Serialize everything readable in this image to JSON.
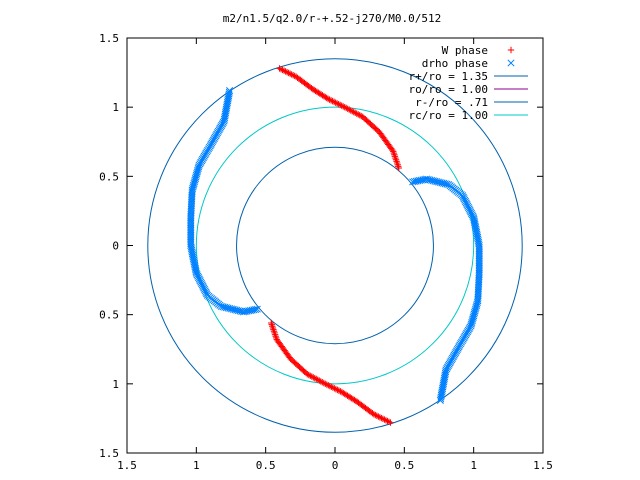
{
  "chart_data": {
    "type": "scatter",
    "title": "m2/n1.5/q2.0/r-+.52-j270/M0.0/512",
    "xlabel": "",
    "ylabel": "",
    "xlim": [
      -1.5,
      1.5
    ],
    "ylim": [
      -1.5,
      1.5
    ],
    "x_ticks": [
      {
        "value": -1.5,
        "label": "1.5"
      },
      {
        "value": -1,
        "label": "1"
      },
      {
        "value": -0.5,
        "label": "0.5"
      },
      {
        "value": 0,
        "label": "0"
      },
      {
        "value": 0.5,
        "label": "0.5"
      },
      {
        "value": 1,
        "label": "1"
      },
      {
        "value": 1.5,
        "label": "1.5"
      }
    ],
    "y_ticks": [
      {
        "value": 1.5,
        "label": "1.5"
      },
      {
        "value": 1,
        "label": "1"
      },
      {
        "value": 0.5,
        "label": "0.5"
      },
      {
        "value": 0,
        "label": "0"
      },
      {
        "value": -0.5,
        "label": "0.5"
      },
      {
        "value": -1,
        "label": "1"
      },
      {
        "value": -1.5,
        "label": "1.5"
      }
    ],
    "grid": false,
    "legend_position": "top-right",
    "series": [
      {
        "name": "W phase",
        "kind": "points",
        "marker": "+",
        "color": "#ff0000",
        "arms": [
          [
            [
              -0.4,
              1.28
            ],
            [
              -0.28,
              1.22
            ],
            [
              -0.16,
              1.13
            ],
            [
              -0.05,
              1.06
            ],
            [
              0.07,
              1.0
            ],
            [
              0.2,
              0.93
            ],
            [
              0.32,
              0.82
            ],
            [
              0.42,
              0.68
            ],
            [
              0.46,
              0.56
            ]
          ],
          [
            [
              0.4,
              -1.28
            ],
            [
              0.28,
              -1.22
            ],
            [
              0.16,
              -1.13
            ],
            [
              0.05,
              -1.06
            ],
            [
              -0.07,
              -1.0
            ],
            [
              -0.2,
              -0.93
            ],
            [
              -0.32,
              -0.82
            ],
            [
              -0.42,
              -0.68
            ],
            [
              -0.46,
              -0.56
            ]
          ]
        ]
      },
      {
        "name": "drho phase",
        "kind": "points",
        "marker": "x",
        "color": "#0080ff",
        "arms": [
          [
            [
              -0.76,
              1.12
            ],
            [
              -0.8,
              0.9
            ],
            [
              -0.9,
              0.72
            ],
            [
              -0.98,
              0.58
            ],
            [
              -1.03,
              0.4
            ],
            [
              -1.04,
              0.2
            ],
            [
              -1.04,
              0.0
            ],
            [
              -1.0,
              -0.2
            ],
            [
              -0.92,
              -0.36
            ],
            [
              -0.82,
              -0.44
            ],
            [
              -0.66,
              -0.48
            ],
            [
              -0.56,
              -0.46
            ]
          ],
          [
            [
              0.76,
              -1.12
            ],
            [
              0.8,
              -0.9
            ],
            [
              0.9,
              -0.72
            ],
            [
              0.98,
              -0.58
            ],
            [
              1.03,
              -0.4
            ],
            [
              1.04,
              -0.2
            ],
            [
              1.04,
              0.0
            ],
            [
              1.0,
              0.2
            ],
            [
              0.92,
              0.36
            ],
            [
              0.82,
              0.44
            ],
            [
              0.66,
              0.48
            ],
            [
              0.56,
              0.46
            ]
          ]
        ]
      },
      {
        "name": "r+/ro = 1.35",
        "kind": "circle",
        "radius": 1.35,
        "color": "#0060ad"
      },
      {
        "name": "ro/ro = 1.00",
        "kind": "legend-only",
        "color": "#8b008b"
      },
      {
        "name": "r-/ro = .71",
        "kind": "circle",
        "radius": 0.71,
        "color": "#0060ad"
      },
      {
        "name": "rc/ro = 1.00",
        "kind": "circle",
        "radius": 1.0,
        "color": "#00c8c8"
      }
    ]
  }
}
